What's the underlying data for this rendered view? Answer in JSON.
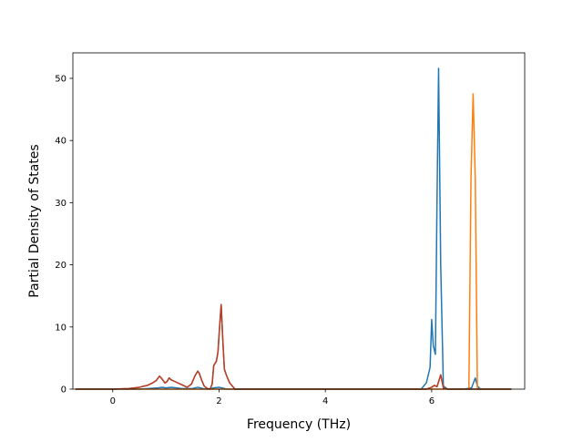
{
  "chart_data": {
    "type": "line",
    "title": "",
    "xlabel": "Frequency (THz)",
    "ylabel": "Partial Density of States",
    "xlim": [
      -0.75,
      7.75
    ],
    "ylim": [
      0,
      54.1
    ],
    "xticks": [
      0,
      2,
      4,
      6
    ],
    "yticks": [
      0,
      10,
      20,
      30,
      40,
      50
    ],
    "grid": false,
    "legend": "none",
    "series": [
      {
        "color": "#1f77b4",
        "x": [
          -0.7,
          0.5,
          0.85,
          0.93,
          1.0,
          1.1,
          1.2,
          1.3,
          1.5,
          1.6,
          1.7,
          1.8,
          1.9,
          2.0,
          2.05,
          2.15,
          2.3,
          5.8,
          5.9,
          5.97,
          6.0,
          6.03,
          6.07,
          6.1,
          6.13,
          6.17,
          6.22,
          6.3,
          6.6,
          6.75,
          6.82,
          6.86,
          6.92,
          7.5
        ],
        "y": [
          0,
          0,
          0.2,
          0.3,
          0.2,
          0.3,
          0.2,
          0.1,
          0.1,
          0.3,
          0.1,
          0.0,
          0.2,
          0.3,
          0.2,
          0.0,
          0,
          0,
          1.0,
          3.5,
          11.2,
          7.0,
          5.6,
          30.0,
          51.6,
          20.0,
          0.5,
          0,
          0,
          0.2,
          1.8,
          0.5,
          0,
          0
        ]
      },
      {
        "color": "#ff7f0e",
        "x": [
          -0.7,
          6.0,
          6.7,
          6.74,
          6.78,
          6.82,
          6.86,
          6.9,
          7.5
        ],
        "y": [
          0,
          0,
          0,
          34.0,
          47.5,
          34.0,
          0,
          0,
          0
        ]
      },
      {
        "color": "#2ca02c",
        "x": [
          -0.7,
          0.0,
          0.3,
          0.5,
          0.65,
          0.75,
          0.82,
          0.88,
          0.93,
          0.98,
          1.02,
          1.06,
          1.1,
          1.15,
          1.2,
          1.3,
          1.4,
          1.48,
          1.55,
          1.6,
          1.63,
          1.67,
          1.72,
          1.78,
          1.83,
          1.87,
          1.9,
          1.95,
          1.98,
          2.01,
          2.04,
          2.07,
          2.1,
          2.14,
          2.2,
          2.3,
          5.9,
          6.0,
          6.05,
          6.1,
          6.13,
          6.17,
          6.22,
          6.3,
          7.5
        ],
        "y": [
          0,
          0,
          0.1,
          0.3,
          0.6,
          1.0,
          1.4,
          2.1,
          1.6,
          1.0,
          1.2,
          1.8,
          1.5,
          1.3,
          1.1,
          0.7,
          0.3,
          0.8,
          2.2,
          2.9,
          2.5,
          1.5,
          0.5,
          0.1,
          0.0,
          0.8,
          3.8,
          4.5,
          6.0,
          10.0,
          13.6,
          8.0,
          3.2,
          2.2,
          1.0,
          0,
          0,
          0.3,
          0.6,
          0.4,
          1.2,
          2.3,
          0.2,
          0,
          0
        ]
      },
      {
        "color": "#c0392b",
        "x": [
          -0.7,
          0.0,
          0.3,
          0.5,
          0.65,
          0.75,
          0.82,
          0.88,
          0.93,
          0.98,
          1.02,
          1.06,
          1.1,
          1.15,
          1.2,
          1.3,
          1.4,
          1.48,
          1.55,
          1.6,
          1.63,
          1.67,
          1.72,
          1.78,
          1.83,
          1.87,
          1.9,
          1.95,
          1.98,
          2.01,
          2.04,
          2.07,
          2.1,
          2.14,
          2.2,
          2.3,
          5.9,
          6.0,
          6.05,
          6.1,
          6.13,
          6.17,
          6.22,
          6.3,
          7.5
        ],
        "y": [
          0,
          0,
          0.1,
          0.3,
          0.6,
          1.0,
          1.4,
          2.1,
          1.6,
          1.0,
          1.2,
          1.8,
          1.5,
          1.3,
          1.1,
          0.7,
          0.3,
          0.8,
          2.2,
          2.9,
          2.5,
          1.5,
          0.5,
          0.1,
          0.0,
          0.8,
          3.8,
          4.5,
          6.0,
          10.0,
          13.6,
          8.0,
          3.2,
          2.2,
          1.0,
          0,
          0,
          0.3,
          0.6,
          0.4,
          1.2,
          2.3,
          0.2,
          0,
          0
        ]
      }
    ]
  }
}
